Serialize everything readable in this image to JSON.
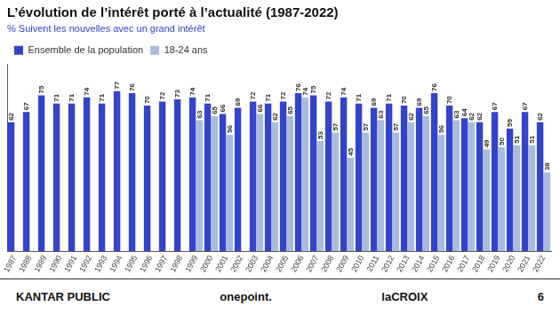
{
  "chart_data": {
    "type": "bar",
    "title": "L’évolution de l’intérêt porté à l’actualité (1987-2022)",
    "subtitle": "% Suivent les nouvelles avec un grand intérêt",
    "categories": [
      "1987",
      "1988",
      "1989",
      "1990",
      "1991",
      "1992",
      "1993",
      "1994",
      "1995",
      "1996",
      "1997",
      "1998",
      "1999",
      "2000",
      "2001",
      "2002",
      "2003",
      "2004",
      "2005",
      "2006",
      "2007",
      "2008",
      "2009",
      "2010",
      "2011",
      "2012",
      "2013",
      "2014",
      "2015",
      "2016",
      "2017",
      "2018",
      "2019",
      "2020",
      "2021",
      "2022"
    ],
    "series": [
      {
        "name": "Ensemble de la population",
        "color": "#3344cc",
        "values": [
          62,
          67,
          75,
          71,
          71,
          74,
          71,
          77,
          76,
          70,
          72,
          73,
          74,
          71,
          66,
          69,
          72,
          71,
          72,
          76,
          75,
          72,
          74,
          71,
          69,
          71,
          70,
          69,
          76,
          70,
          64,
          62,
          67,
          59,
          67,
          62
        ]
      },
      {
        "name": "18-24 ans",
        "color": "#aabbdd",
        "values": [
          null,
          null,
          null,
          null,
          null,
          null,
          null,
          null,
          null,
          null,
          null,
          null,
          63,
          65,
          56,
          null,
          66,
          62,
          65,
          74,
          53,
          57,
          45,
          57,
          63,
          57,
          62,
          65,
          56,
          63,
          62,
          49,
          50,
          51,
          51,
          38
        ]
      }
    ],
    "ylim": [
      0,
      90
    ],
    "grid": false,
    "legend": "upper left",
    "data_labels": true,
    "tick_labels": "x",
    "annotations": [
      "KANTAR PUBLIC",
      "onepoint.",
      "laCROIX",
      "6"
    ]
  }
}
